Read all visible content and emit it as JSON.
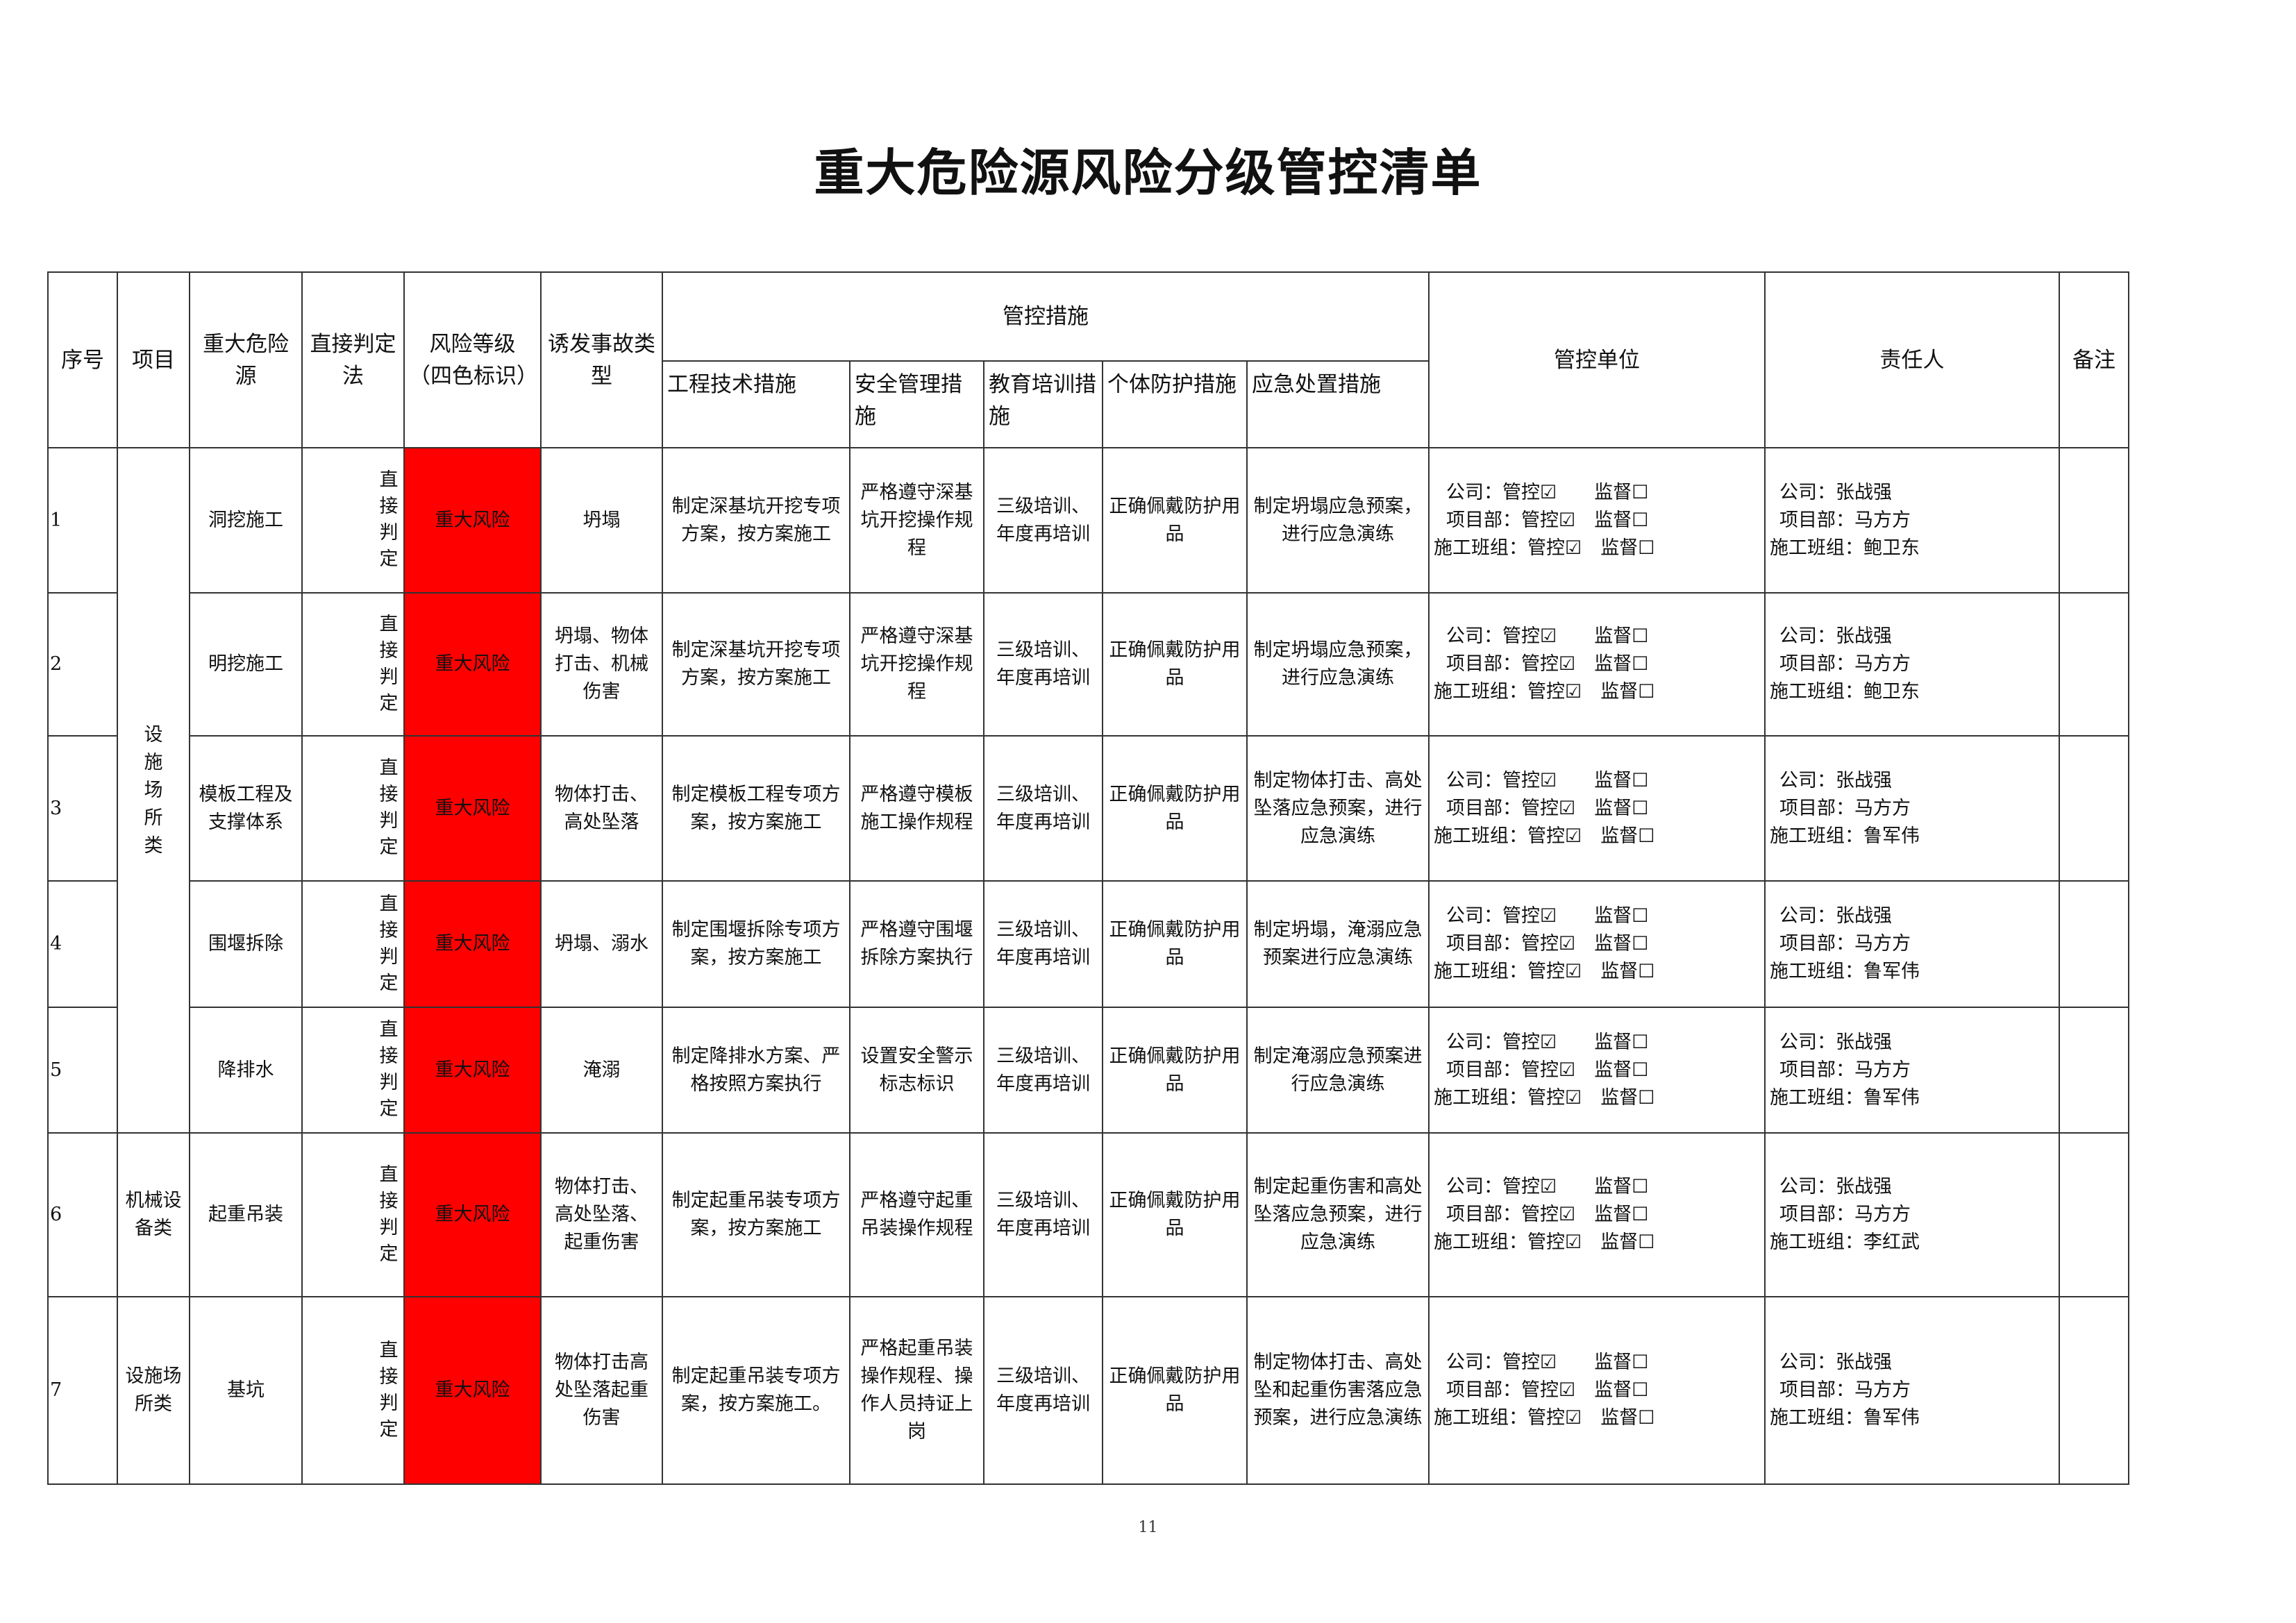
{
  "title": "重大危险源风险分级管控清单",
  "headers": {
    "seq": "序号",
    "project": "项目",
    "hazard": "重大危险源",
    "method": "直接判定法",
    "risk_level": "风险等级（四色标识）",
    "accident": "诱发事故类型",
    "measures": "管控措施",
    "measures_sub": [
      "工程技术措施",
      "安全管理措施",
      "教育培训措施",
      "个体防护措施",
      "应急处置措施"
    ],
    "unit": "管控单位",
    "person": "责任人",
    "remark": "备注"
  },
  "colors": {
    "major_risk": "#ff0000"
  },
  "projects": [
    {
      "label": "设施场所类",
      "rows": 5
    },
    {
      "label": "机械设备类",
      "rows": 1
    },
    {
      "label": "设施场所类",
      "rows": 1
    }
  ],
  "rows": [
    {
      "seq": "1",
      "hazard": "洞挖施工",
      "method": "直接判定",
      "level": "重大风险",
      "accident": "坍塌",
      "eng": "制定深基坑开挖专项方案，按方案施工",
      "mgmt": "严格遵守深基坑开挖操作规程",
      "edu": "三级培训、年度再培训",
      "ppe": "正确佩戴防护用品",
      "emg": "制定坍塌应急预案，进行应急演练",
      "unit": [
        "公司：管控☑　　监督☐",
        "项目部：管控☑　监督☐",
        "施工班组：管控☑　监督☐"
      ],
      "person": [
        "公司：张战强",
        "项目部：马方方",
        "施工班组：鲍卫东"
      ],
      "remark": ""
    },
    {
      "seq": "2",
      "hazard": "明挖施工",
      "method": "直接判定",
      "level": "重大风险",
      "accident": "坍塌、物体打击、机械伤害",
      "eng": "制定深基坑开挖专项方案，按方案施工",
      "mgmt": "严格遵守深基坑开挖操作规程",
      "edu": "三级培训、年度再培训",
      "ppe": "正确佩戴防护用品",
      "emg": "制定坍塌应急预案，进行应急演练",
      "unit": [
        "公司：管控☑　　监督☐",
        "项目部：管控☑　监督☐",
        "施工班组：管控☑　监督☐"
      ],
      "person": [
        "公司：张战强",
        "项目部：马方方",
        "施工班组：鲍卫东"
      ],
      "remark": ""
    },
    {
      "seq": "3",
      "hazard": "模板工程及支撑体系",
      "method": "直接判定",
      "level": "重大风险",
      "accident": "物体打击、高处坠落",
      "eng": "制定模板工程专项方案，按方案施工",
      "mgmt": "严格遵守模板施工操作规程",
      "edu": "三级培训、年度再培训",
      "ppe": "正确佩戴防护用品",
      "emg": "制定物体打击、高处坠落应急预案，进行应急演练",
      "unit": [
        "公司：管控☑　　监督☐",
        "项目部：管控☑　监督☐",
        "施工班组：管控☑　监督☐"
      ],
      "person": [
        "公司：张战强",
        "项目部：马方方",
        "施工班组：鲁军伟"
      ],
      "remark": ""
    },
    {
      "seq": "4",
      "hazard": "围堰拆除",
      "method": "直接判定",
      "level": "重大风险",
      "accident": "坍塌、溺水",
      "eng": "制定围堰拆除专项方案，按方案施工",
      "mgmt": "严格遵守围堰拆除方案执行",
      "edu": "三级培训、年度再培训",
      "ppe": "正确佩戴防护用品",
      "emg": "制定坍塌，淹溺应急预案进行应急演练",
      "unit": [
        "公司：管控☑　　监督☐",
        "项目部：管控☑　监督☐",
        "施工班组：管控☑　监督☐"
      ],
      "person": [
        "公司：张战强",
        "项目部：马方方",
        "施工班组：鲁军伟"
      ],
      "remark": ""
    },
    {
      "seq": "5",
      "hazard": "降排水",
      "method": "直接判定",
      "level": "重大风险",
      "accident": "淹溺",
      "eng": "制定降排水方案、严格按照方案执行",
      "mgmt": "设置安全警示标志标识",
      "edu": "三级培训、年度再培训",
      "ppe": "正确佩戴防护用品",
      "emg": "制定淹溺应急预案进行应急演练",
      "unit": [
        "公司：管控☑　　监督☐",
        "项目部：管控☑　监督☐",
        "施工班组：管控☑　监督☐"
      ],
      "person": [
        "公司：张战强",
        "项目部：马方方",
        "施工班组：鲁军伟"
      ],
      "remark": ""
    },
    {
      "seq": "6",
      "hazard": "起重吊装",
      "method": "直接判定",
      "level": "重大风险",
      "accident": "物体打击、高处坠落、起重伤害",
      "eng": "制定起重吊装专项方案，按方案施工",
      "mgmt": "严格遵守起重吊装操作规程",
      "edu": "三级培训、年度再培训",
      "ppe": "正确佩戴防护用品",
      "emg": "制定起重伤害和高处坠落应急预案，进行应急演练",
      "unit": [
        "公司：管控☑　　监督☐",
        "项目部：管控☑　监督☐",
        "施工班组：管控☑　监督☐"
      ],
      "person": [
        "公司：张战强",
        "项目部：马方方",
        "施工班组：李红武"
      ],
      "remark": ""
    },
    {
      "seq": "7",
      "hazard": "基坑",
      "method": "直接判定",
      "level": "重大风险",
      "accident": "物体打击高处坠落起重伤害",
      "eng": "制定起重吊装专项方案，按方案施工。",
      "mgmt": "严格起重吊装操作规程、操作人员持证上岗",
      "edu": "三级培训、年度再培训",
      "ppe": "正确佩戴防护用品",
      "emg": "制定物体打击、高处坠和起重伤害落应急预案，进行应急演练",
      "unit": [
        "公司：管控☑　　监督☐",
        "项目部：管控☑　监督☐",
        "施工班组：管控☑　监督☐"
      ],
      "person": [
        "公司：张战强",
        "项目部：马方方",
        "施工班组：鲁军伟"
      ],
      "remark": ""
    }
  ],
  "page_number": "11"
}
